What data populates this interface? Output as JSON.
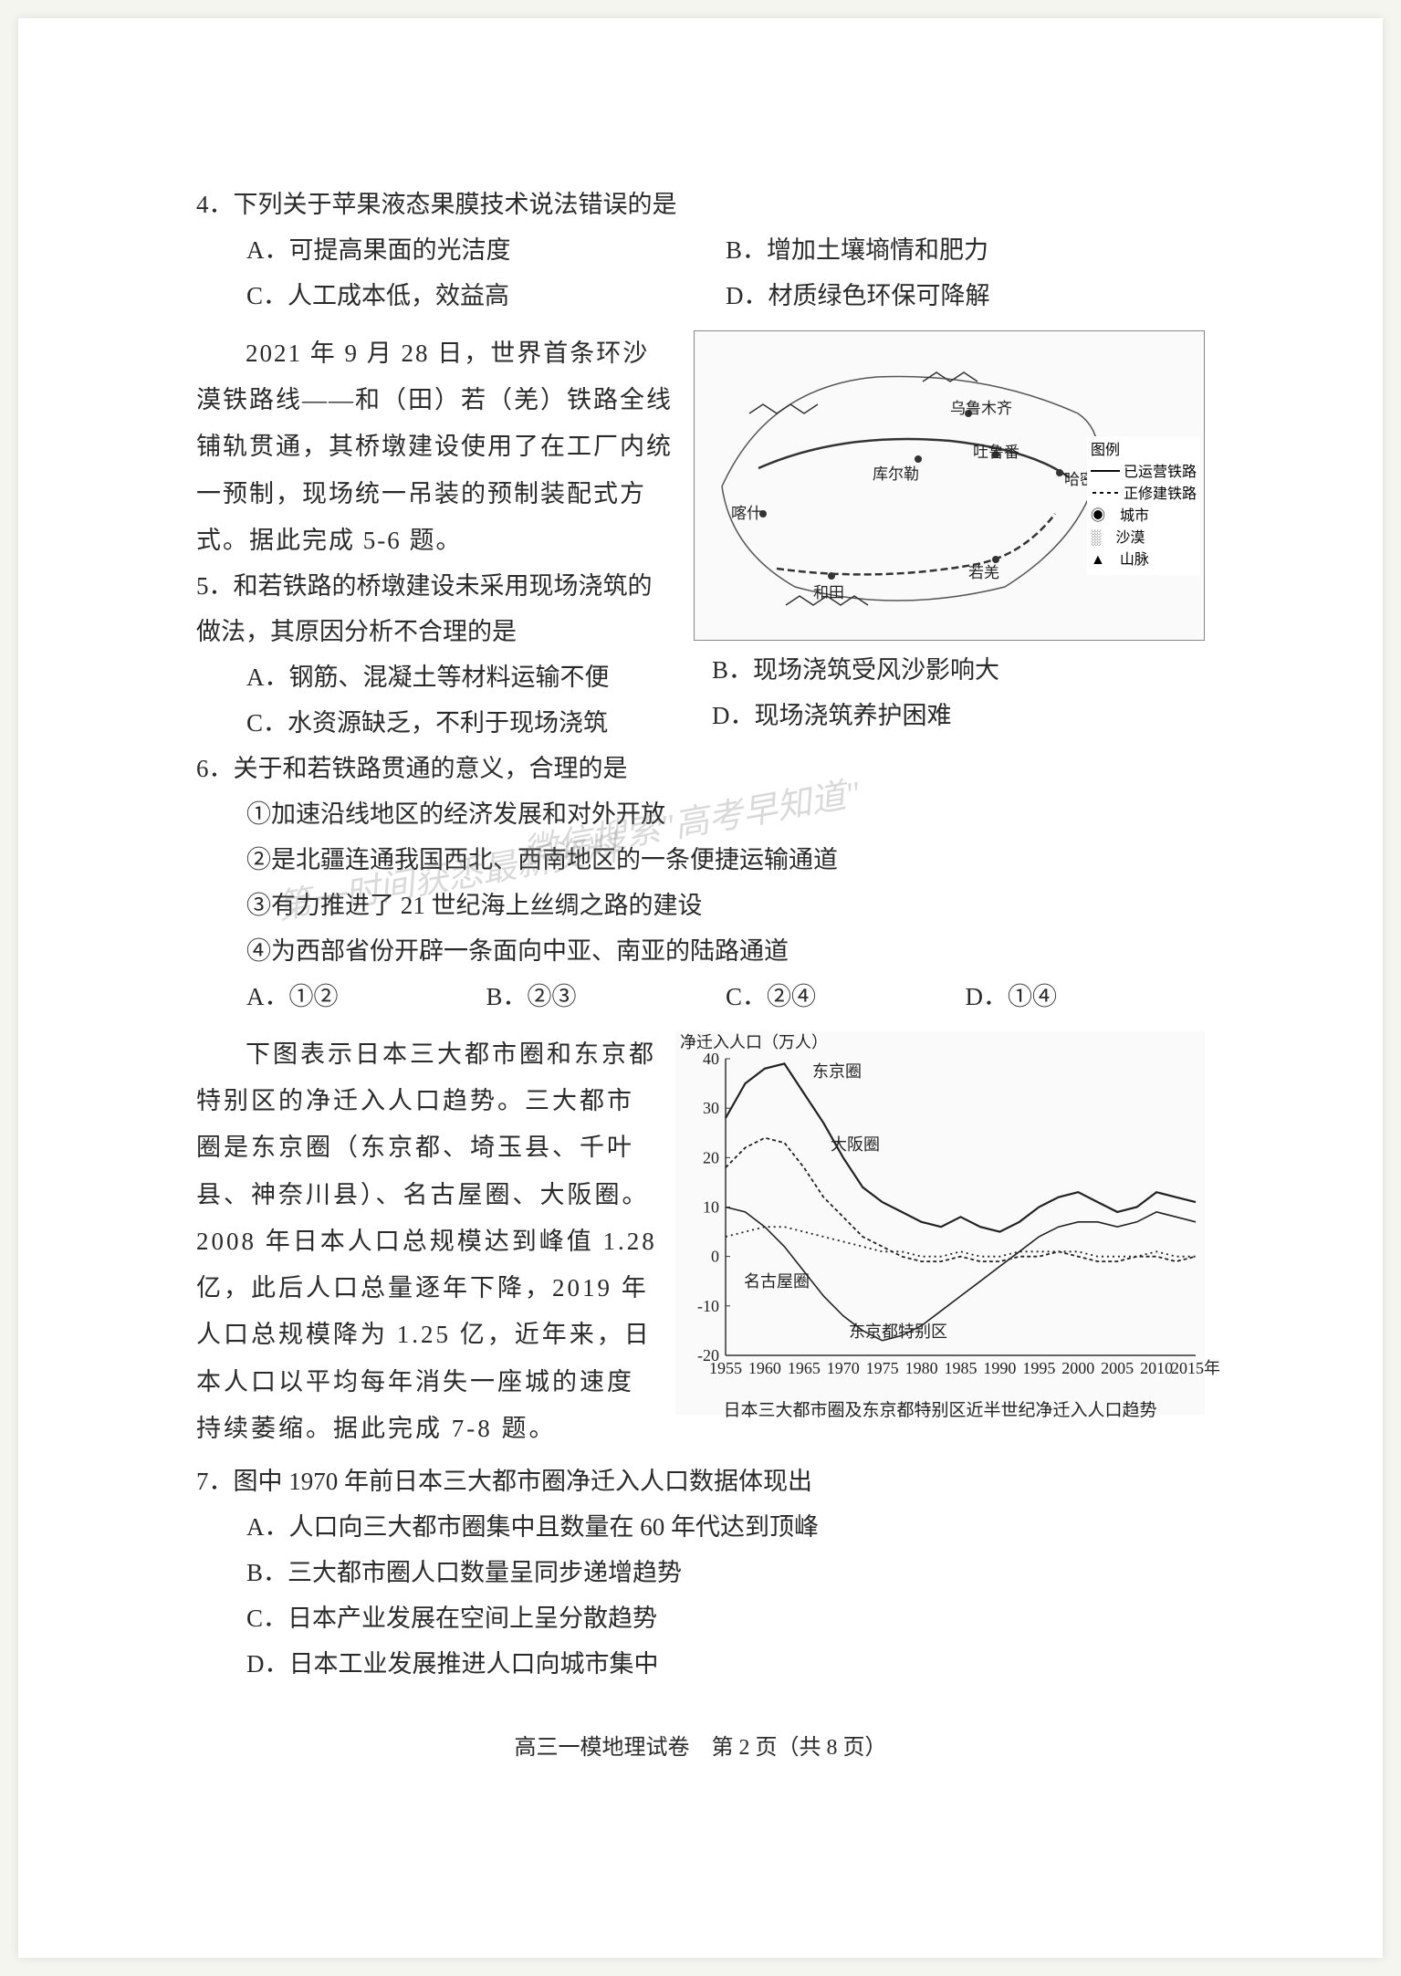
{
  "page": {
    "footer": "高三一模地理试卷　第 2 页（共 8 页）",
    "background_color": "#ffffff",
    "text_color": "#2a2a2a",
    "font_size_body": 27
  },
  "watermark": {
    "line1": "微信搜索\"高考早知道\"",
    "line2": "第一时间获悉最新资料"
  },
  "q4": {
    "stem": "4．下列关于苹果液态果膜技术说法错误的是",
    "A": "A．可提高果面的光洁度",
    "B": "B．增加土壤墒情和肥力",
    "C": "C．人工成本低，效益高",
    "D": "D．材质绿色环保可降解"
  },
  "context56": "2021 年 9 月 28 日，世界首条环沙漠铁路线——和（田）若（羌）铁路全线铺轨贯通，其桥墩建设使用了在工厂内统一预制，现场统一吊装的预制装配式方式。据此完成 5-6 题。",
  "q5": {
    "stem": "5．和若铁路的桥墩建设未采用现场浇筑的做法，其原因分析不合理的是",
    "A": "A．钢筋、混凝土等材料运输不便",
    "B": "B．现场浇筑受风沙影响大",
    "C": "C．水资源缺乏，不利于现场浇筑",
    "D": "D．现场浇筑养护困难"
  },
  "q6": {
    "stem": "6．关于和若铁路贯通的意义，合理的是",
    "i1": "①加速沿线地区的经济发展和对外开放",
    "i2": "②是北疆连通我国西北、西南地区的一条便捷运输通道",
    "i3": "③有力推进了 21 世纪海上丝绸之路的建设",
    "i4": "④为西部省份开辟一条面向中亚、南亚的陆路通道",
    "A": "A．①②",
    "B": "B．②③",
    "C": "C．②④",
    "D": "D．①④"
  },
  "context78": "下图表示日本三大都市圈和东京都特别区的净迁入人口趋势。三大都市圈是东京圈（东京都、埼玉县、千叶县、神奈川县）、名古屋圈、大阪圈。2008 年日本人口总规模达到峰值 1.28 亿，此后人口总量逐年下降，2019 年人口总规模降为 1.25 亿，近年来，日本人口以平均每年消失一座城的速度持续萎缩。据此完成 7-8 题。",
  "q7": {
    "stem": "7．图中 1970 年前日本三大都市圈净迁入人口数据体现出",
    "A": "A．人口向三大都市圈集中且数量在 60 年代达到顶峰",
    "B": "B．三大都市圈人口数量呈同步递增趋势",
    "C": "C．日本产业发展在空间上呈分散趋势",
    "D": "D．日本工业发展推进人口向城市集中"
  },
  "map": {
    "title": "图例",
    "legend": {
      "l1": "已运营铁路",
      "l2": "正修建铁路",
      "l3": "城市",
      "l4": "沙漠",
      "l5": "山脉"
    },
    "cities": {
      "c1": "乌鲁木齐",
      "c2": "库尔勒",
      "c3": "吐鲁番",
      "c4": "哈密",
      "c5": "喀什",
      "c6": "和田",
      "c7": "若羌"
    }
  },
  "chart": {
    "y_label": "净迁入人口（万人）",
    "y_ticks": [
      "40",
      "30",
      "20",
      "10",
      "0",
      "-10",
      "-20"
    ],
    "x_ticks": [
      "1955",
      "1960",
      "1965",
      "1970",
      "1975",
      "1980",
      "1985",
      "1990",
      "1995",
      "2000",
      "2005",
      "2010",
      "2015年"
    ],
    "series": {
      "tokyo": "东京圈",
      "osaka": "大阪圈",
      "nagoya": "名古屋圈",
      "tokyo_special": "东京都特别区"
    },
    "caption": "日本三大都市圈及东京都特别区近半世纪净迁入人口趋势",
    "ylim": [
      -20,
      40
    ],
    "colors": {
      "line": "#222222",
      "axis": "#333333",
      "bg": "#fafafa"
    },
    "data": {
      "tokyo": [
        28,
        35,
        38,
        39,
        33,
        27,
        20,
        14,
        11,
        9,
        7,
        6,
        8,
        6,
        5,
        7,
        10,
        12,
        13,
        11,
        9,
        10,
        13,
        12,
        11
      ],
      "osaka": [
        18,
        22,
        24,
        23,
        18,
        12,
        8,
        4,
        2,
        0,
        -1,
        -1,
        0,
        -1,
        -1,
        0,
        0,
        1,
        0,
        -1,
        -1,
        0,
        0,
        -1,
        0
      ],
      "nagoya": [
        4,
        5,
        6,
        6,
        5,
        4,
        3,
        2,
        1,
        1,
        0,
        0,
        1,
        0,
        0,
        1,
        1,
        1,
        1,
        0,
        0,
        0,
        1,
        0,
        0
      ],
      "tokyo_special": [
        10,
        9,
        6,
        2,
        -3,
        -8,
        -12,
        -15,
        -17,
        -16,
        -14,
        -11,
        -8,
        -5,
        -2,
        1,
        4,
        6,
        7,
        7,
        6,
        7,
        9,
        8,
        7
      ]
    }
  }
}
